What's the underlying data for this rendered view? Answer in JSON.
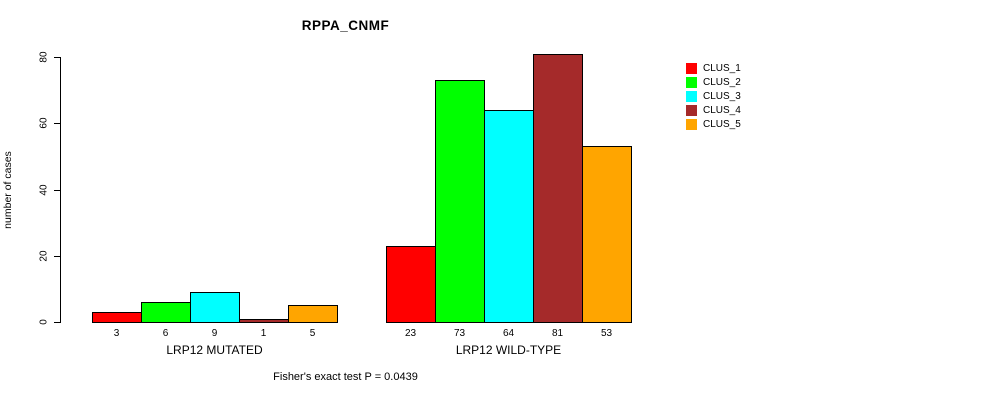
{
  "chart_data": {
    "type": "bar",
    "title": "RPPA_CNMF",
    "ylabel": "number of cases",
    "xlabel": "",
    "ylim": [
      0,
      80
    ],
    "yticks": [
      0,
      20,
      40,
      60,
      80
    ],
    "grid": false,
    "legend_position": "right",
    "series_colors": [
      "#FF0000",
      "#00FF00",
      "#00FFFF",
      "#A52A2A",
      "#FFA500"
    ],
    "legend": [
      {
        "label": "CLUS_1",
        "color": "#FF0000"
      },
      {
        "label": "CLUS_2",
        "color": "#00FF00"
      },
      {
        "label": "CLUS_3",
        "color": "#00FFFF"
      },
      {
        "label": "CLUS_4",
        "color": "#A52A2A"
      },
      {
        "label": "CLUS_5",
        "color": "#FFA500"
      }
    ],
    "groups": [
      {
        "label": "LRP12 MUTATED",
        "values": [
          3,
          6,
          9,
          1,
          5
        ]
      },
      {
        "label": "LRP12 WILD-TYPE",
        "values": [
          23,
          73,
          64,
          81,
          53
        ]
      }
    ],
    "annotation": "Fisher's exact test P = 0.0439"
  }
}
